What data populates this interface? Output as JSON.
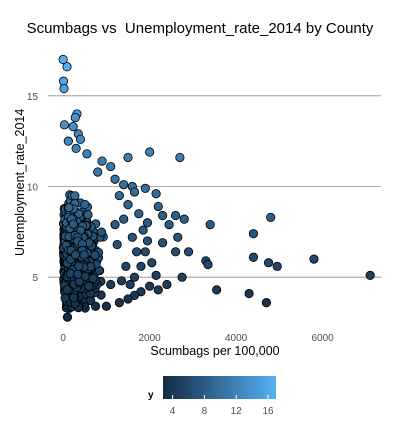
{
  "chart_data": {
    "type": "scatter",
    "title": "Scumbags vs  Unemployment_rate_2014 by County",
    "xlabel": "Scumbags per 100,000",
    "ylabel": "Unemployment_rate_2014",
    "xlim": [
      -350,
      7350
    ],
    "ylim": [
      2.2,
      17.8
    ],
    "x_ticks": [
      0,
      2000,
      4000,
      6000
    ],
    "y_ticks": [
      5,
      10,
      15
    ],
    "grid": "horizontal major lines",
    "color_scale": {
      "title": "y",
      "low_color": "#132B43",
      "high_color": "#56B1F7",
      "ticks": [
        4,
        8,
        12,
        16
      ],
      "range": [
        2.8,
        17.0
      ],
      "placement": "bottom"
    },
    "points": [
      {
        "x": 0,
        "y": 17.0
      },
      {
        "x": 90,
        "y": 16.6
      },
      {
        "x": 10,
        "y": 15.8
      },
      {
        "x": 20,
        "y": 15.4
      },
      {
        "x": 320,
        "y": 14.0
      },
      {
        "x": 280,
        "y": 13.8
      },
      {
        "x": 30,
        "y": 13.4
      },
      {
        "x": 230,
        "y": 13.3
      },
      {
        "x": 350,
        "y": 12.9
      },
      {
        "x": 400,
        "y": 12.6
      },
      {
        "x": 120,
        "y": 12.5
      },
      {
        "x": 2000,
        "y": 11.9
      },
      {
        "x": 2700,
        "y": 11.6
      },
      {
        "x": 1500,
        "y": 11.6
      },
      {
        "x": 300,
        "y": 12.1
      },
      {
        "x": 550,
        "y": 11.8
      },
      {
        "x": 900,
        "y": 11.4
      },
      {
        "x": 1100,
        "y": 11.1
      },
      {
        "x": 800,
        "y": 10.8
      },
      {
        "x": 1200,
        "y": 10.4
      },
      {
        "x": 1400,
        "y": 10.1
      },
      {
        "x": 1600,
        "y": 10.0
      },
      {
        "x": 1900,
        "y": 9.9
      },
      {
        "x": 2150,
        "y": 9.6
      },
      {
        "x": 2200,
        "y": 8.9
      },
      {
        "x": 2300,
        "y": 8.4
      },
      {
        "x": 2600,
        "y": 8.4
      },
      {
        "x": 2800,
        "y": 8.2
      },
      {
        "x": 2450,
        "y": 7.9
      },
      {
        "x": 3400,
        "y": 7.9
      },
      {
        "x": 2650,
        "y": 7.2
      },
      {
        "x": 4800,
        "y": 8.3
      },
      {
        "x": 4400,
        "y": 7.4
      },
      {
        "x": 2300,
        "y": 6.9
      },
      {
        "x": 2600,
        "y": 6.4
      },
      {
        "x": 2900,
        "y": 6.4
      },
      {
        "x": 1900,
        "y": 6.4
      },
      {
        "x": 5800,
        "y": 6.0
      },
      {
        "x": 4400,
        "y": 6.1
      },
      {
        "x": 4750,
        "y": 5.8
      },
      {
        "x": 4950,
        "y": 5.6
      },
      {
        "x": 3300,
        "y": 5.9
      },
      {
        "x": 3350,
        "y": 5.7
      },
      {
        "x": 7100,
        "y": 5.1
      },
      {
        "x": 2750,
        "y": 5.0
      },
      {
        "x": 2150,
        "y": 5.1
      },
      {
        "x": 2400,
        "y": 4.6
      },
      {
        "x": 2000,
        "y": 4.5
      },
      {
        "x": 1800,
        "y": 4.2
      },
      {
        "x": 2200,
        "y": 4.3
      },
      {
        "x": 3550,
        "y": 4.3
      },
      {
        "x": 4300,
        "y": 4.1
      },
      {
        "x": 4700,
        "y": 3.6
      },
      {
        "x": 1650,
        "y": 4.0
      },
      {
        "x": 1300,
        "y": 3.6
      },
      {
        "x": 1500,
        "y": 3.8
      },
      {
        "x": 1000,
        "y": 3.4
      },
      {
        "x": 750,
        "y": 3.4
      },
      {
        "x": 100,
        "y": 2.8
      },
      {
        "x": 1650,
        "y": 5.0
      },
      {
        "x": 1700,
        "y": 6.4
      },
      {
        "x": 1600,
        "y": 7.2
      },
      {
        "x": 1850,
        "y": 7.6
      },
      {
        "x": 1950,
        "y": 8.0
      },
      {
        "x": 1750,
        "y": 8.5
      },
      {
        "x": 1500,
        "y": 9.0
      },
      {
        "x": 1400,
        "y": 8.2
      },
      {
        "x": 1300,
        "y": 9.5
      },
      {
        "x": 1650,
        "y": 9.7
      },
      {
        "x": 1250,
        "y": 6.8
      },
      {
        "x": 1100,
        "y": 4.6
      },
      {
        "x": 1450,
        "y": 5.6
      },
      {
        "x": 1550,
        "y": 4.6
      },
      {
        "x": 1800,
        "y": 5.6
      },
      {
        "x": 2050,
        "y": 5.8
      },
      {
        "x": 1950,
        "y": 7.0
      },
      {
        "x": 1200,
        "y": 7.9
      },
      {
        "x": 1350,
        "y": 4.8
      }
    ]
  }
}
